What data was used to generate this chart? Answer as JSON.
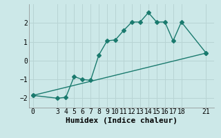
{
  "xlabel": "Humidex (Indice chaleur)",
  "bg_color": "#cce8e8",
  "grid_color": "#b8d4d4",
  "line_color": "#1a7a6e",
  "line1_x": [
    0,
    3,
    4,
    5,
    6,
    7,
    8,
    9,
    10,
    11,
    12,
    13,
    14,
    15,
    16,
    17,
    18,
    21
  ],
  "line1_y": [
    -1.85,
    -2.0,
    -1.95,
    -0.85,
    -1.0,
    -1.05,
    0.3,
    1.05,
    1.1,
    1.6,
    2.05,
    2.05,
    2.55,
    2.05,
    2.05,
    1.05,
    2.05,
    0.4
  ],
  "line2_x": [
    0,
    21
  ],
  "line2_y": [
    -1.85,
    0.4
  ],
  "xlim": [
    -0.5,
    22
  ],
  "ylim": [
    -2.5,
    3.0
  ],
  "xticks": [
    0,
    3,
    4,
    5,
    6,
    7,
    8,
    9,
    10,
    11,
    12,
    13,
    14,
    15,
    16,
    17,
    18,
    21
  ],
  "yticks": [
    -2,
    -1,
    0,
    1,
    2
  ],
  "marker": "D",
  "markersize": 3,
  "linewidth": 1.0,
  "xlabel_fontsize": 8,
  "tick_fontsize": 7
}
